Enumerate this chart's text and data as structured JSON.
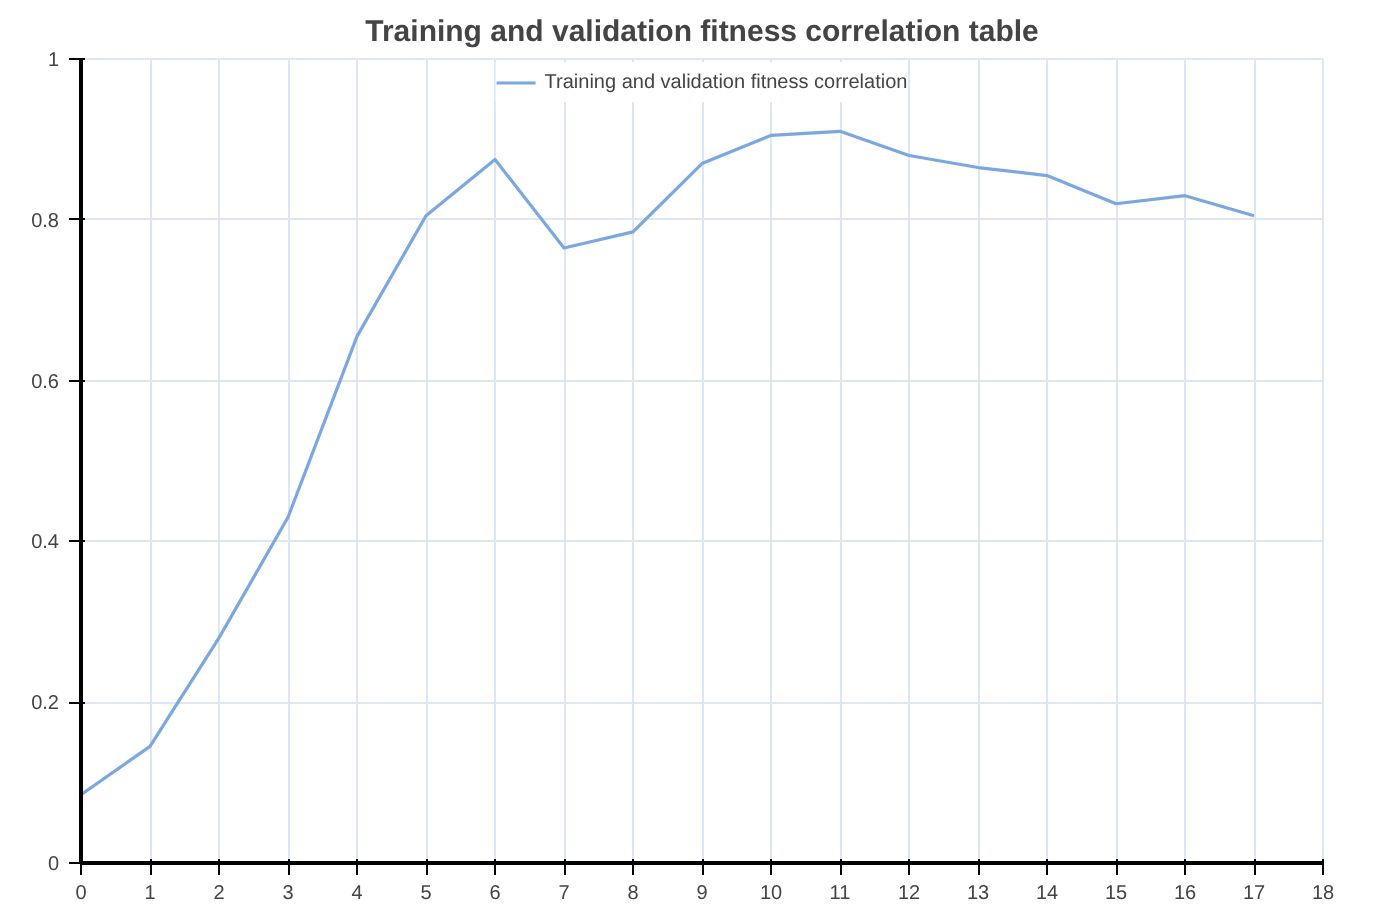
{
  "chart_data": {
    "type": "line",
    "title": "Training and validation fitness correlation table",
    "x": [
      0,
      1,
      2,
      3,
      4,
      5,
      6,
      7,
      8,
      9,
      10,
      11,
      12,
      13,
      14,
      15,
      16,
      17
    ],
    "series": [
      {
        "name": "Training and validation fitness correlation",
        "color": "#7ba7e0",
        "values": [
          0.085,
          0.145,
          0.28,
          0.43,
          0.655,
          0.805,
          0.875,
          0.765,
          0.785,
          0.87,
          0.905,
          0.91,
          0.88,
          0.865,
          0.855,
          0.82,
          0.83,
          0.805
        ]
      }
    ],
    "xlim": [
      0,
      18
    ],
    "xticks": [
      0,
      1,
      2,
      3,
      4,
      5,
      6,
      7,
      8,
      9,
      10,
      11,
      12,
      13,
      14,
      15,
      16,
      17,
      18
    ],
    "ylim": [
      0,
      1
    ],
    "yticks": [
      0,
      0.2,
      0.4,
      0.6,
      0.8,
      1
    ],
    "grid": true,
    "legend": "top",
    "marker": "none",
    "line_style": "solid"
  }
}
